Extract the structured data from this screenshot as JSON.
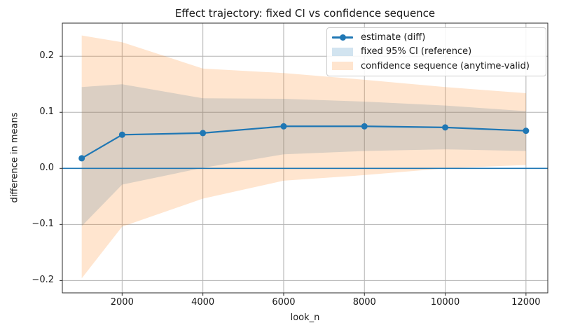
{
  "title": "Effect trajectory: fixed CI vs confidence sequence",
  "chart_data": {
    "type": "line",
    "title": "Effect trajectory: fixed CI vs confidence sequence",
    "xlabel": "look_n",
    "ylabel": "difference in means",
    "x": [
      1000,
      2000,
      4000,
      6000,
      8000,
      10000,
      12000
    ],
    "series": [
      {
        "name": "estimate (diff)",
        "kind": "line-marker",
        "color": "#1f77b4",
        "values": [
          0.018,
          0.06,
          0.063,
          0.075,
          0.075,
          0.073,
          0.067
        ]
      },
      {
        "name": "fixed 95% CI (reference)",
        "kind": "band",
        "color": "#1f77b4",
        "alpha": 0.2,
        "lower": [
          -0.103,
          -0.029,
          0.001,
          0.025,
          0.031,
          0.034,
          0.031
        ],
        "upper": [
          0.145,
          0.15,
          0.125,
          0.124,
          0.119,
          0.112,
          0.102
        ]
      },
      {
        "name": "confidence sequence (anytime-valid)",
        "kind": "band",
        "color": "#ff7f0e",
        "alpha": 0.2,
        "lower": [
          -0.196,
          -0.104,
          -0.054,
          -0.022,
          -0.012,
          0.0,
          0.006
        ],
        "upper": [
          0.237,
          0.225,
          0.178,
          0.17,
          0.158,
          0.145,
          0.134
        ]
      }
    ],
    "axhline": 0.0,
    "xlim": [
      520,
      12540
    ],
    "ylim": [
      -0.222,
      0.259
    ],
    "xticks": [
      2000,
      4000,
      6000,
      8000,
      10000,
      12000
    ],
    "xtick_labels": [
      "2000",
      "4000",
      "6000",
      "8000",
      "10000",
      "12000"
    ],
    "yticks": [
      -0.2,
      -0.1,
      0.0,
      0.1,
      0.2
    ],
    "ytick_labels": [
      "−0.2",
      "−0.1",
      "0.0",
      "0.1",
      "0.2"
    ],
    "grid": true,
    "legend_position": "upper right",
    "colors": {
      "line": "#1f77b4",
      "axhline": "#1f77b4",
      "grid": "#b3b3b3",
      "frame": "#2b2b2b",
      "text": "#1a1a1a"
    }
  }
}
